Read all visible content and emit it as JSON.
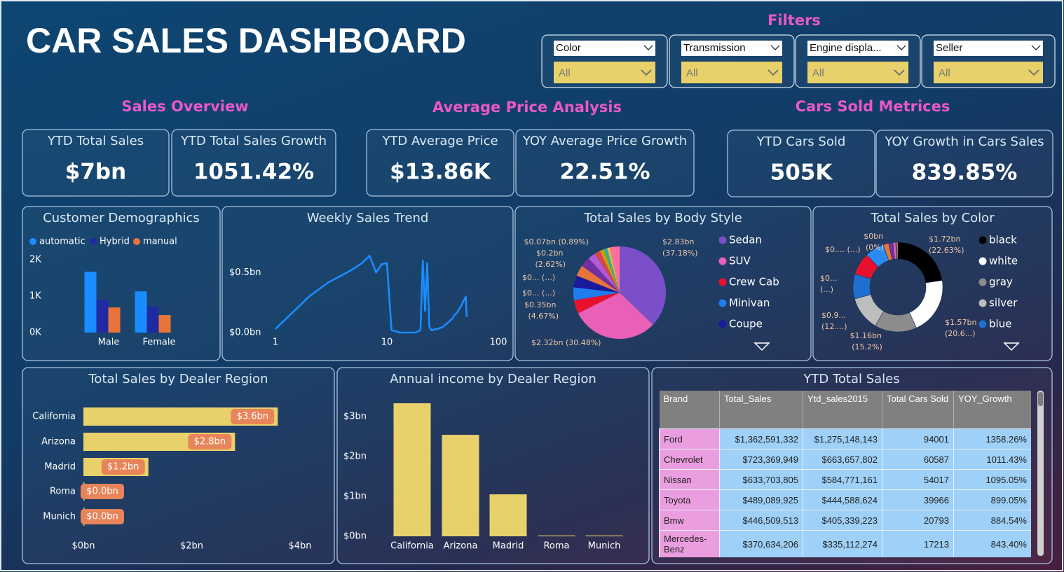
{
  "header": {
    "title": "CAR SALES DASHBOARD",
    "filters_title": "Filters"
  },
  "filters": [
    {
      "label": "Color",
      "value": "All"
    },
    {
      "label": "Transmission",
      "value": "All"
    },
    {
      "label": "Engine displa...",
      "value": "All"
    },
    {
      "label": "Seller",
      "value": "All"
    }
  ],
  "sections": [
    "Sales Overview",
    "Average Price Analysis",
    "Cars Sold Metrices"
  ],
  "kpis": [
    {
      "label": "YTD Total Sales",
      "value": "$7bn"
    },
    {
      "label": "YTD Total Sales Growth",
      "value": "1051.42%"
    },
    {
      "label": "YTD Average Price",
      "value": "$13.86K"
    },
    {
      "label": "YOY Average Price Growth",
      "value": "22.51%"
    },
    {
      "label": "YTD Cars Sold",
      "value": "505K"
    },
    {
      "label": "YOY Growth in Cars Sales",
      "value": "839.85%"
    }
  ],
  "chart_data": [
    {
      "type": "grouped_bar",
      "title": "Customer Demographics",
      "categories": [
        "Male",
        "Female"
      ],
      "series": [
        {
          "name": "automatic",
          "color": "#1a8cff",
          "values": [
            1670,
            1130
          ]
        },
        {
          "name": "Hybrid",
          "color": "#1f2aa0",
          "values": [
            900,
            710
          ]
        },
        {
          "name": "manual",
          "color": "#e8743b",
          "values": [
            690,
            480
          ]
        }
      ],
      "ylim": [
        0,
        2000
      ],
      "yticks": [
        {
          "value": 0,
          "label": "0K"
        },
        {
          "value": 1000,
          "label": "1K"
        },
        {
          "value": 2000,
          "label": "2K"
        }
      ],
      "legend": "top-left"
    },
    {
      "type": "line",
      "title": "Weekly Sales Trend",
      "x": [
        1,
        2,
        3,
        4,
        5,
        6,
        7,
        8,
        9,
        10,
        11,
        12,
        13,
        14,
        15,
        16,
        17,
        18,
        19,
        20,
        21,
        22,
        23,
        24,
        25,
        26,
        27,
        28,
        29,
        30,
        31,
        32,
        33,
        34,
        35,
        36,
        37,
        38,
        39,
        40,
        41,
        42,
        43,
        44,
        45,
        46,
        47,
        48,
        49,
        50,
        51,
        52
      ],
      "series": [
        {
          "color": "#1a8cff",
          "values": [
            0.03,
            0.3,
            0.42,
            0.48,
            0.53,
            0.58,
            0.64,
            0.5,
            0.57,
            0.58,
            0.02,
            0.01,
            0,
            0,
            0,
            0,
            0,
            0,
            0.01,
            0.02,
            0.6,
            0.18,
            0.58,
            0.05,
            0.02,
            0.02,
            0.03,
            0.03,
            0.03,
            0.04,
            0.04,
            0.05,
            0.06,
            0.07,
            0.08,
            0.09,
            0.1,
            0.11,
            0.12,
            0.14,
            0.15,
            0.16,
            0.17,
            0.19,
            0.2,
            0.22,
            0.23,
            0.25,
            0.27,
            0.28,
            0.3,
            0.13
          ]
        }
      ],
      "xscale": "log",
      "xlim": [
        1,
        100
      ],
      "xticks": [
        1,
        10,
        100
      ],
      "ylim": [
        0,
        0.7
      ],
      "yticks": [
        {
          "value": 0,
          "label": "$0.0bn"
        },
        {
          "value": 0.5,
          "label": "$0.5bn"
        }
      ]
    },
    {
      "type": "pie",
      "title": "Total Sales by Body Style",
      "categories": [
        "Sedan",
        "SUV",
        "Crew Cab",
        "Minivan",
        "Coupe",
        null,
        null,
        null,
        null,
        null,
        null,
        null,
        null
      ],
      "values": [
        37.18,
        30.48,
        4.67,
        4.5,
        4.2,
        3.8,
        3.5,
        2.62,
        2.0,
        1.5,
        1.2,
        0.89,
        3.46
      ],
      "value_labels": [
        "$2.83bn (37.18%)",
        "$2.32bn (30.48%)",
        "$0.35bn (4.67%)",
        "$0... (...)",
        "$0... (...)",
        null,
        null,
        "$0.2bn (2.62%)",
        null,
        null,
        null,
        "$0.07bn (0.89%)",
        null
      ],
      "colors": [
        "#7b4fc9",
        "#e860b8",
        "#e8112d",
        "#1e7ef0",
        "#1a1a9c",
        "#e8743b",
        "#7030a0",
        "#b05ad8",
        "#d64550",
        "#c8a000",
        "#2ab0a0",
        "#e8c040",
        "#ff6fa0"
      ],
      "legend": "right"
    },
    {
      "type": "donut",
      "title": "Total Sales by Color",
      "categories": [
        "black",
        "white",
        "gray",
        "silver",
        "blue",
        null,
        null,
        null,
        null,
        null,
        null,
        null
      ],
      "values": [
        22.63,
        20.6,
        15.2,
        12.3,
        9,
        8,
        7,
        2,
        1.5,
        1,
        0.37,
        0.4
      ],
      "value_labels": [
        "$1.72bn (22.63%)",
        "$1.57bn (20.6...)",
        "$1.16bn (15.2%)",
        "$0.9... (12....)",
        "$0... (...)",
        "$0.... (...)",
        null,
        null,
        null,
        null,
        null,
        "$0bn (0%)"
      ],
      "colors": [
        "#000000",
        "#ffffff",
        "#8c8c8c",
        "#bdbdbd",
        "#1e6fd0",
        "#e8112d",
        "#2a8cf0",
        "#e8743b",
        "#7030a0",
        "#e860b8",
        "#c8a000",
        "#ff8080"
      ],
      "legend": "right"
    },
    {
      "type": "hbar",
      "title": "Total Sales by Dealer Region",
      "categories": [
        "California",
        "Arizona",
        "Madrid",
        "Roma",
        "Munich"
      ],
      "values": [
        3.59,
        2.8,
        1.2,
        0.02,
        0.02
      ],
      "value_labels": [
        "$3.6bn",
        "$2.8bn",
        "$1.2bn",
        "$0.0bn",
        "$0.0bn"
      ],
      "color": "#e8d16a",
      "label_color": "#e8845a",
      "xlim": [
        0,
        4
      ],
      "xticks": [
        {
          "value": 0,
          "label": "$0bn"
        },
        {
          "value": 2,
          "label": "$2bn"
        },
        {
          "value": 4,
          "label": "$4bn"
        }
      ]
    },
    {
      "type": "bar",
      "title": "Annual income by Dealer Region",
      "categories": [
        "California",
        "Arizona",
        "Madrid",
        "Roma",
        "Munich"
      ],
      "values": [
        3.33,
        2.54,
        1.05,
        0.02,
        0.02
      ],
      "color": "#e8d16a",
      "ylim": [
        0,
        3.4
      ],
      "yticks": [
        {
          "value": 0,
          "label": "$0bn"
        },
        {
          "value": 1,
          "label": "$1bn"
        },
        {
          "value": 2,
          "label": "$2bn"
        },
        {
          "value": 3,
          "label": "$3bn"
        }
      ]
    }
  ],
  "table": {
    "title": "YTD Total Sales",
    "columns": [
      "Brand",
      "Total_Sales",
      "Ytd_sales2015",
      "Total Cars Sold",
      "YOY_Growth"
    ],
    "rows": [
      [
        "Ford",
        "$1,362,591,332",
        "$1,275,148,143",
        "94001",
        "1358.26%"
      ],
      [
        "Chevrolet",
        "$723,369,949",
        "$663,657,802",
        "60587",
        "1011.43%"
      ],
      [
        "Nissan",
        "$633,703,805",
        "$584,771,161",
        "54017",
        "1095.05%"
      ],
      [
        "Toyota",
        "$489,089,925",
        "$444,588,624",
        "39966",
        "899.05%"
      ],
      [
        "Bmw",
        "$446,509,513",
        "$405,339,223",
        "20793",
        "884.54%"
      ],
      [
        "Mercedes-Benz",
        "$370,634,206",
        "$335,112,274",
        "17213",
        "843.40%"
      ]
    ]
  }
}
